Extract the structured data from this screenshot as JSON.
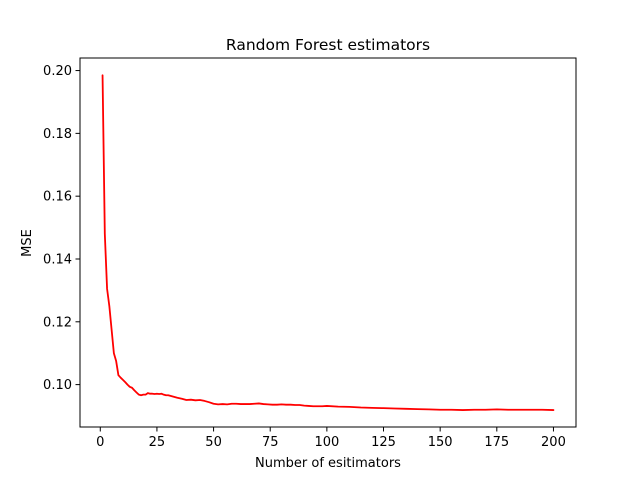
{
  "chart_data": {
    "type": "line",
    "title": "Random Forest estimators",
    "xlabel": "Number of esitimators",
    "ylabel": "MSE",
    "xlim": [
      -8.95,
      209.95
    ],
    "ylim": [
      0.0865,
      0.204
    ],
    "xticks": [
      0,
      25,
      50,
      75,
      100,
      125,
      150,
      175,
      200
    ],
    "yticks": [
      0.1,
      0.12,
      0.14,
      0.16,
      0.18,
      0.2
    ],
    "ytick_labels": [
      "0.10",
      "0.12",
      "0.14",
      "0.16",
      "0.18",
      "0.20"
    ],
    "grid": false,
    "series": [
      {
        "color": "#ff0000",
        "x": [
          1,
          2,
          3,
          4,
          5,
          6,
          7,
          8,
          9,
          10,
          11,
          12,
          13,
          14,
          15,
          16,
          17,
          18,
          19,
          20,
          21,
          22,
          23,
          24,
          25,
          26,
          27,
          28,
          29,
          30,
          32,
          34,
          36,
          38,
          40,
          42,
          44,
          46,
          48,
          50,
          52,
          54,
          56,
          58,
          60,
          62,
          64,
          66,
          68,
          70,
          72,
          74,
          76,
          78,
          80,
          82,
          84,
          86,
          88,
          90,
          92,
          94,
          96,
          98,
          100,
          105,
          110,
          115,
          120,
          125,
          130,
          135,
          140,
          145,
          150,
          155,
          160,
          165,
          170,
          175,
          180,
          185,
          190,
          195,
          200
        ],
        "y": [
          0.1985,
          0.148,
          0.1305,
          0.125,
          0.1175,
          0.11,
          0.1075,
          0.103,
          0.1022,
          0.1015,
          0.1008,
          0.1,
          0.0993,
          0.099,
          0.0982,
          0.0975,
          0.0968,
          0.0966,
          0.0968,
          0.0968,
          0.0973,
          0.0971,
          0.0971,
          0.097,
          0.0971,
          0.097,
          0.0971,
          0.0968,
          0.0966,
          0.0966,
          0.0962,
          0.0958,
          0.0955,
          0.0951,
          0.0952,
          0.095,
          0.0951,
          0.0948,
          0.0944,
          0.0939,
          0.0937,
          0.0938,
          0.0937,
          0.0939,
          0.0939,
          0.0938,
          0.0938,
          0.0938,
          0.0939,
          0.094,
          0.0938,
          0.0937,
          0.0936,
          0.0936,
          0.0937,
          0.0936,
          0.0936,
          0.0935,
          0.0935,
          0.0933,
          0.0932,
          0.0931,
          0.0931,
          0.0931,
          0.0932,
          0.093,
          0.0929,
          0.0927,
          0.0926,
          0.0925,
          0.0924,
          0.0923,
          0.0922,
          0.0921,
          0.092,
          0.092,
          0.0919,
          0.092,
          0.092,
          0.0921,
          0.092,
          0.092,
          0.092,
          0.092,
          0.0919
        ]
      }
    ]
  }
}
